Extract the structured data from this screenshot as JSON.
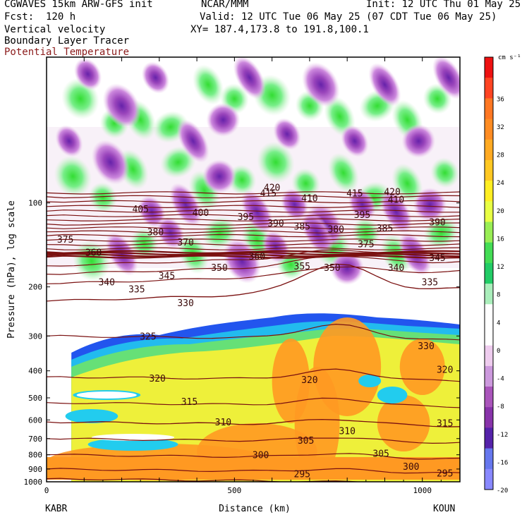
{
  "header": {
    "model": "CGWAVES 15km ARW-GFS init",
    "center": "NCAR/MMM",
    "init": "Init: 12 UTC Thu 01 May 25",
    "fcst": "Fcst:  120 h",
    "valid": "Valid: 12 UTC Tue 06 May 25 (07 CDT Tue 06 May 25)",
    "field1": "Vertical velocity",
    "xy": "XY= 187.4,173.8 to 191.8,100.1",
    "field2": "Boundary Layer Tracer",
    "field3": "Potential Temperature",
    "field3_color": "#8b1a1a"
  },
  "chart_data": {
    "type": "heatmap",
    "xlabel": "Distance (km)",
    "ylabel": "Pressure (hPa), log scale",
    "xlim": [
      0,
      1100
    ],
    "ylim": [
      1000,
      30
    ],
    "y_log": true,
    "x_ticks": [
      "0",
      "500",
      "1000"
    ],
    "y_ticks": [
      "100",
      "200",
      "300",
      "400",
      "500",
      "600",
      "700",
      "800",
      "900",
      "1000"
    ],
    "x_start_label": "KABR",
    "x_end_label": "KOUN",
    "colorbar": {
      "unit": "cm s⁻¹",
      "labels": [
        "36",
        "32",
        "28",
        "24",
        "20",
        "16",
        "12",
        "8",
        "4",
        "0",
        "-4",
        "-8",
        "-12",
        "-16",
        "-20"
      ],
      "colors": [
        "#ee1111",
        "#ff4422",
        "#ff7722",
        "#ff8c22",
        "#ffaa22",
        "#ffc822",
        "#ffee22",
        "#e8ff44",
        "#99ee55",
        "#44dd55",
        "#22cc66",
        "#aaeebb",
        "#ffffff",
        "#ffffff",
        "#eeccee",
        "#cc99dd",
        "#aa55bb",
        "#8833aa",
        "#5522aa",
        "#6677ee",
        "#8888ff"
      ]
    },
    "theta_labels": [
      {
        "v": "415",
        "x": 590,
        "p": 92
      },
      {
        "v": "420",
        "x": 920,
        "p": 91
      },
      {
        "v": "420",
        "x": 600,
        "p": 88
      },
      {
        "v": "405",
        "x": 250,
        "p": 105
      },
      {
        "v": "410",
        "x": 700,
        "p": 96
      },
      {
        "v": "415",
        "x": 820,
        "p": 92
      },
      {
        "v": "410",
        "x": 930,
        "p": 97
      },
      {
        "v": "400",
        "x": 410,
        "p": 108
      },
      {
        "v": "395",
        "x": 530,
        "p": 112
      },
      {
        "v": "395",
        "x": 840,
        "p": 110
      },
      {
        "v": "390",
        "x": 1040,
        "p": 117
      },
      {
        "v": "390",
        "x": 610,
        "p": 118
      },
      {
        "v": "385",
        "x": 680,
        "p": 121
      },
      {
        "v": "380",
        "x": 770,
        "p": 124
      },
      {
        "v": "385",
        "x": 900,
        "p": 123
      },
      {
        "v": "380",
        "x": 290,
        "p": 127
      },
      {
        "v": "375",
        "x": 50,
        "p": 135
      },
      {
        "v": "370",
        "x": 370,
        "p": 138
      },
      {
        "v": "375",
        "x": 850,
        "p": 140
      },
      {
        "v": "360",
        "x": 125,
        "p": 150
      },
      {
        "v": "360",
        "x": 560,
        "p": 155
      },
      {
        "v": "345",
        "x": 1040,
        "p": 157
      },
      {
        "v": "355",
        "x": 680,
        "p": 168
      },
      {
        "v": "350",
        "x": 460,
        "p": 170
      },
      {
        "v": "350",
        "x": 760,
        "p": 170
      },
      {
        "v": "340",
        "x": 930,
        "p": 170
      },
      {
        "v": "345",
        "x": 320,
        "p": 182
      },
      {
        "v": "340",
        "x": 160,
        "p": 192
      },
      {
        "v": "335",
        "x": 240,
        "p": 203
      },
      {
        "v": "335",
        "x": 1020,
        "p": 192
      },
      {
        "v": "330",
        "x": 370,
        "p": 228
      },
      {
        "v": "325",
        "x": 270,
        "p": 300
      },
      {
        "v": "330",
        "x": 1010,
        "p": 325
      },
      {
        "v": "320",
        "x": 295,
        "p": 425
      },
      {
        "v": "320",
        "x": 700,
        "p": 430
      },
      {
        "v": "320",
        "x": 1060,
        "p": 395
      },
      {
        "v": "315",
        "x": 380,
        "p": 515
      },
      {
        "v": "315",
        "x": 1060,
        "p": 615
      },
      {
        "v": "310",
        "x": 470,
        "p": 610
      },
      {
        "v": "310",
        "x": 800,
        "p": 655
      },
      {
        "v": "305",
        "x": 690,
        "p": 710
      },
      {
        "v": "305",
        "x": 890,
        "p": 790
      },
      {
        "v": "300",
        "x": 570,
        "p": 800
      },
      {
        "v": "300",
        "x": 970,
        "p": 880
      },
      {
        "v": "295",
        "x": 680,
        "p": 935
      },
      {
        "v": "295",
        "x": 1060,
        "p": 930
      }
    ]
  }
}
